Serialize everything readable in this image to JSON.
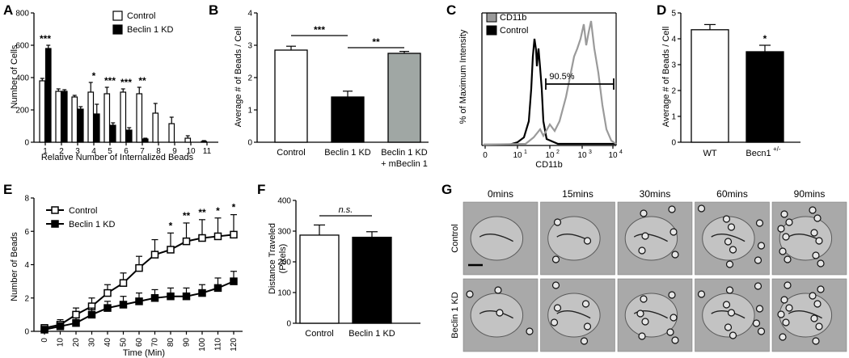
{
  "panels": {
    "A": {
      "label": "A"
    },
    "B": {
      "label": "B"
    },
    "C": {
      "label": "C"
    },
    "D": {
      "label": "D"
    },
    "E": {
      "label": "E"
    },
    "F": {
      "label": "F"
    },
    "G": {
      "label": "G"
    }
  },
  "chart_data": [
    {
      "id": "A",
      "type": "bar",
      "categories": [
        "1",
        "2",
        "3",
        "4",
        "5",
        "6",
        "7",
        "8",
        "9",
        "10",
        "11"
      ],
      "series": [
        {
          "name": "Control",
          "values": [
            380,
            315,
            280,
            310,
            300,
            310,
            300,
            180,
            115,
            25,
            5
          ],
          "errors": [
            15,
            15,
            10,
            60,
            40,
            20,
            40,
            60,
            40,
            15,
            5
          ],
          "color": "#ffffff"
        },
        {
          "name": "Beclin 1 KD",
          "values": [
            580,
            315,
            205,
            175,
            105,
            75,
            20,
            0,
            0,
            0,
            0
          ],
          "errors": [
            20,
            10,
            15,
            60,
            15,
            15,
            5,
            0,
            0,
            0,
            0
          ],
          "color": "#000000"
        }
      ],
      "significance": [
        {
          "category": "1",
          "text": "***"
        },
        {
          "category": "4",
          "text": "*"
        },
        {
          "category": "5",
          "text": "***"
        },
        {
          "category": "6",
          "text": "***"
        },
        {
          "category": "7",
          "text": "**"
        }
      ],
      "xlabel": "Relative Number of Internalized Beads",
      "ylabel": "Number of Cells",
      "ylim": [
        0,
        800
      ],
      "yticks": [
        "0",
        "200",
        "400",
        "600",
        "800"
      ],
      "legend_position": "top-right"
    },
    {
      "id": "B",
      "type": "bar",
      "categories": [
        "Control",
        "Beclin 1 KD",
        "Beclin 1 KD"
      ],
      "category_sublabels": [
        "",
        "",
        "+ mBeclin 1"
      ],
      "values": [
        2.85,
        1.4,
        2.75
      ],
      "errors": [
        0.12,
        0.18,
        0.06
      ],
      "colors": [
        "#ffffff",
        "#000000",
        "#a0a7a4"
      ],
      "significance": [
        {
          "from": 0,
          "to": 1,
          "text": "***"
        },
        {
          "from": 1,
          "to": 2,
          "text": "**"
        }
      ],
      "ylabel": "Average # of Beads / Cell",
      "ylim": [
        0,
        4
      ],
      "yticks": [
        "0",
        "1",
        "2",
        "3",
        "4"
      ]
    },
    {
      "id": "C",
      "type": "line",
      "series": [
        {
          "name": "CD11b",
          "color": "#9a9a9a"
        },
        {
          "name": "Control",
          "color": "#000000"
        }
      ],
      "gate_label": "90.5%",
      "gate_range": [
        70,
        10000
      ],
      "xlabel": "CD11b",
      "ylabel": "% of Maximum Intensity",
      "xscale": "log",
      "xticks": [
        "0",
        "10",
        "10",
        "10",
        "10"
      ],
      "xtick_exponents": [
        "",
        "1",
        "2",
        "3",
        "4"
      ],
      "legend_position": "top-left"
    },
    {
      "id": "D",
      "type": "bar",
      "categories": [
        "WT",
        "Becn1"
      ],
      "category_superscripts": [
        "",
        "+/-"
      ],
      "values": [
        4.35,
        3.5
      ],
      "errors": [
        0.2,
        0.25
      ],
      "colors": [
        "#ffffff",
        "#000000"
      ],
      "significance": [
        {
          "category": "Becn1",
          "text": "*"
        }
      ],
      "ylabel": "Average # of Beads / Cell",
      "ylim": [
        0,
        5
      ],
      "yticks": [
        "0",
        "1",
        "2",
        "3",
        "4",
        "5"
      ]
    },
    {
      "id": "E",
      "type": "line",
      "x": [
        0,
        10,
        20,
        30,
        40,
        50,
        60,
        70,
        80,
        90,
        100,
        110,
        120
      ],
      "xticks": [
        "0",
        "10",
        "20",
        "30",
        "40",
        "50",
        "60",
        "70",
        "80",
        "90",
        "100",
        "110",
        "120"
      ],
      "series": [
        {
          "name": "Control",
          "marker": "open-square",
          "values": [
            0.2,
            0.4,
            1.0,
            1.5,
            2.3,
            2.9,
            3.8,
            4.6,
            4.9,
            5.4,
            5.6,
            5.7,
            5.8
          ],
          "errors": [
            0.2,
            0.3,
            0.4,
            0.5,
            0.5,
            0.6,
            0.7,
            0.9,
            1.0,
            1.1,
            1.1,
            1.1,
            1.2
          ]
        },
        {
          "name": "Beclin 1 KD",
          "marker": "filled-square",
          "values": [
            0.1,
            0.3,
            0.5,
            1.0,
            1.4,
            1.6,
            1.8,
            2.0,
            2.1,
            2.1,
            2.3,
            2.6,
            3.0
          ],
          "errors": [
            0.1,
            0.2,
            0.3,
            0.4,
            0.4,
            0.5,
            0.5,
            0.5,
            0.5,
            0.5,
            0.5,
            0.6,
            0.6
          ]
        }
      ],
      "significance": [
        {
          "x": 80,
          "text": "*"
        },
        {
          "x": 90,
          "text": "**"
        },
        {
          "x": 100,
          "text": "**"
        },
        {
          "x": 110,
          "text": "*"
        },
        {
          "x": 120,
          "text": "*"
        }
      ],
      "xlabel": "Time (Min)",
      "ylabel": "Number of Beads",
      "ylim": [
        0,
        8
      ],
      "yticks": [
        "0",
        "2",
        "4",
        "6",
        "8"
      ],
      "legend_position": "top-left"
    },
    {
      "id": "F",
      "type": "bar",
      "categories": [
        "Control",
        "Beclin 1 KD"
      ],
      "values": [
        287,
        280
      ],
      "errors": [
        33,
        18
      ],
      "colors": [
        "#ffffff",
        "#000000"
      ],
      "significance": [
        {
          "from": 0,
          "to": 1,
          "text": "n.s."
        }
      ],
      "ylabel": "Distance Traveled",
      "ylabel2": "(Pixels)",
      "ylim": [
        0,
        400
      ],
      "yticks": [
        "0",
        "100",
        "200",
        "300",
        "400"
      ]
    }
  ],
  "micrographs": {
    "columns": [
      "0mins",
      "15mins",
      "30mins",
      "60mins",
      "90mins"
    ],
    "rows": [
      "Control",
      "Beclin 1 KD"
    ]
  }
}
